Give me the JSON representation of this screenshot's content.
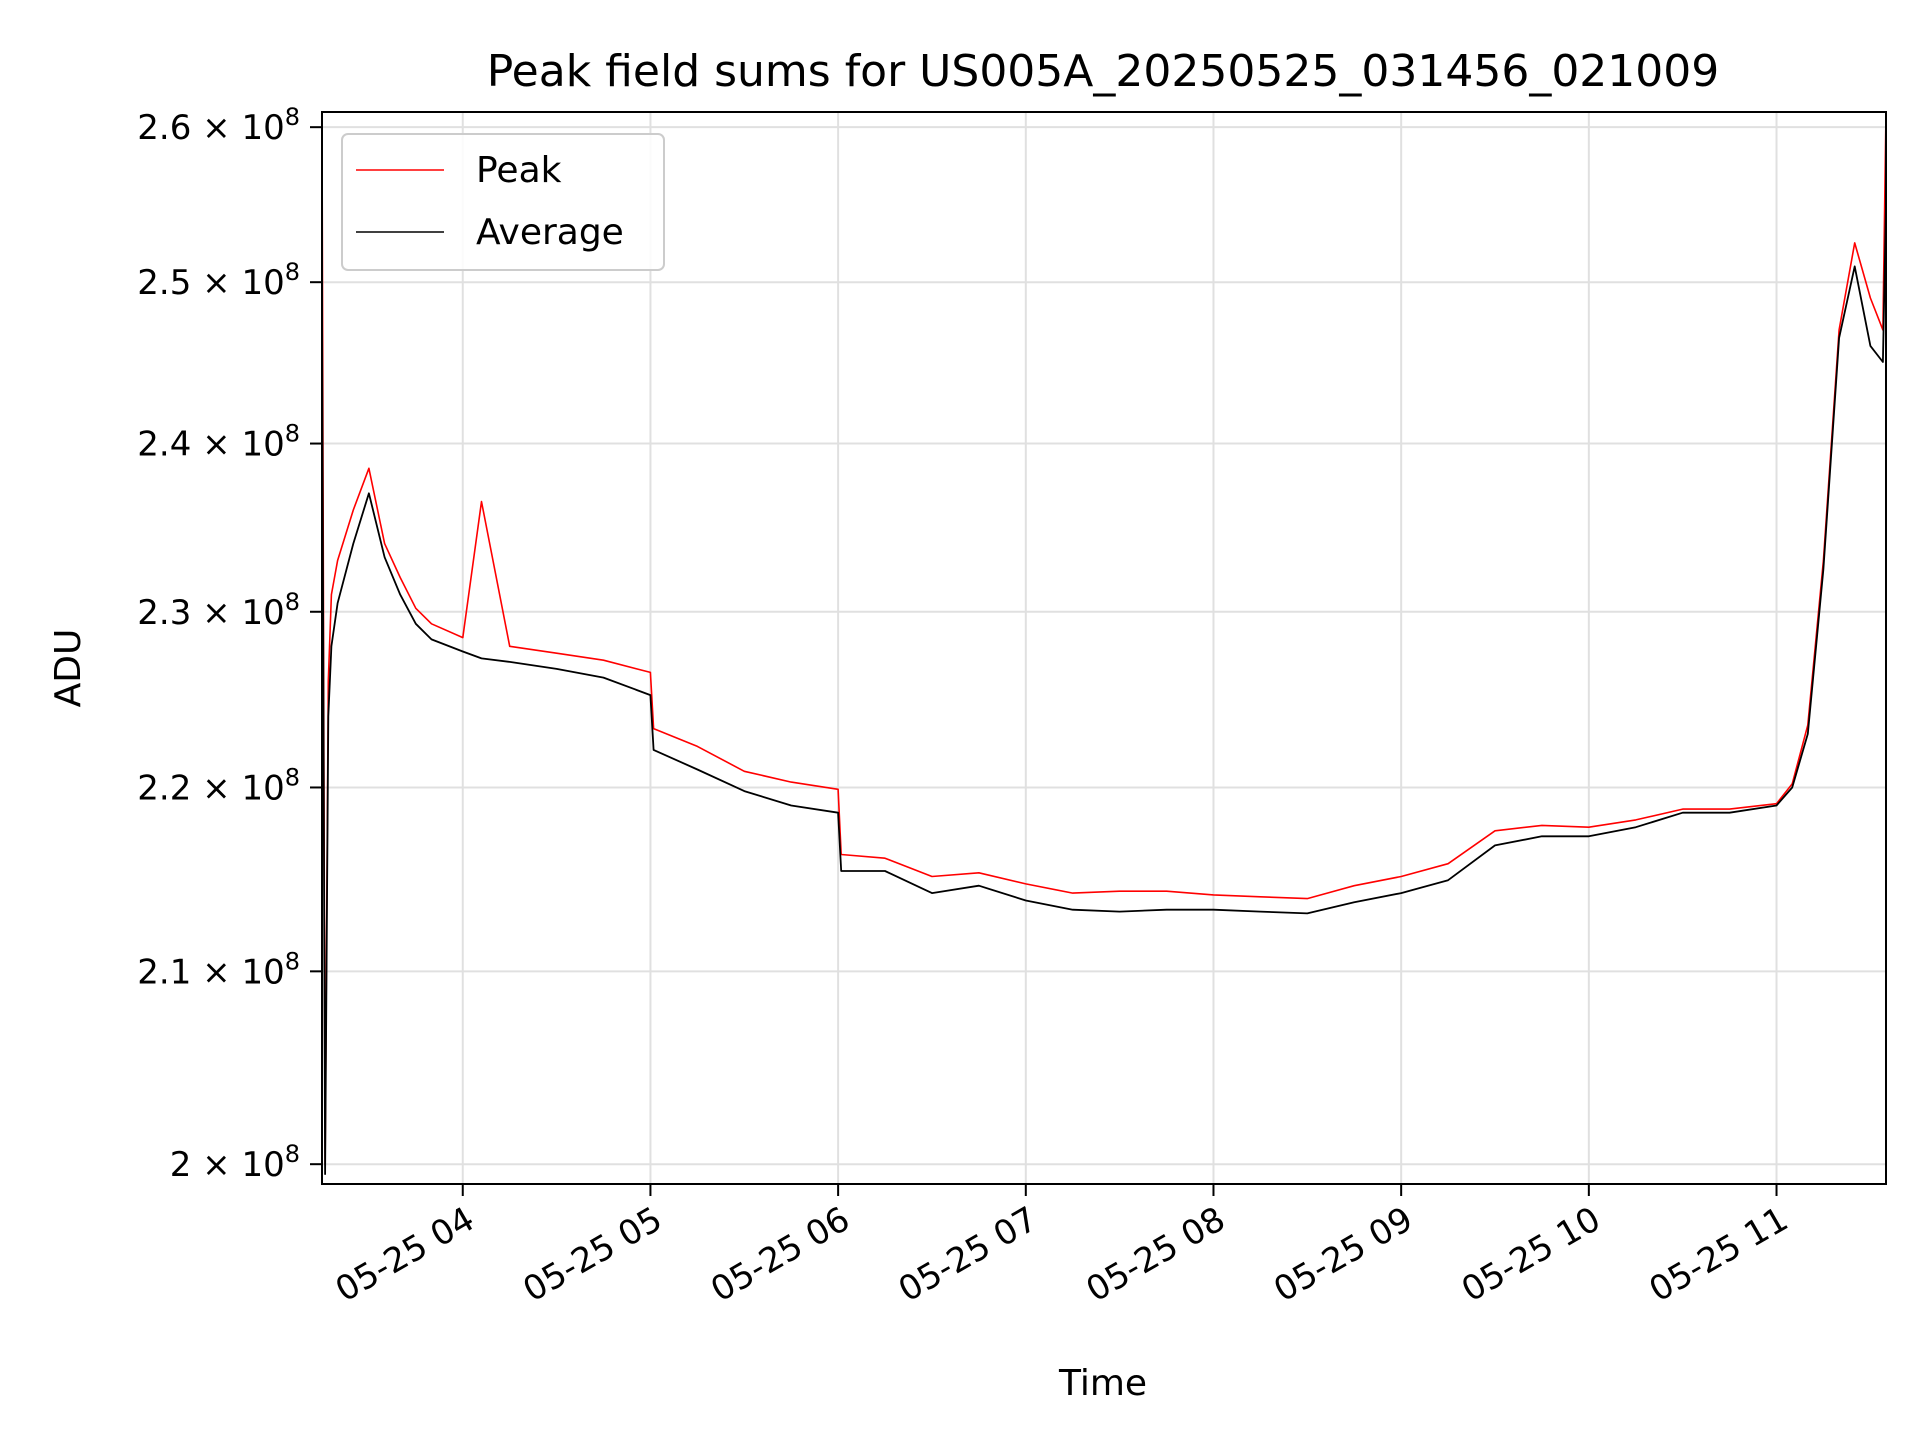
{
  "chart_data": {
    "type": "line",
    "title": "Peak field sums for US005A_20250525_031456_021009",
    "xlabel": "Time",
    "ylabel": "ADU",
    "yscale": "log",
    "xlim": [
      "2025-05-25 03:15",
      "2025-05-25 11:35"
    ],
    "ylim": [
      199000000,
      261000000
    ],
    "x_ticks": [
      "05-25 04",
      "05-25 05",
      "05-25 06",
      "05-25 07",
      "05-25 08",
      "05-25 09",
      "05-25 10",
      "05-25 11"
    ],
    "x_tick_values": [
      "2025-05-25 04:00",
      "2025-05-25 05:00",
      "2025-05-25 06:00",
      "2025-05-25 07:00",
      "2025-05-25 08:00",
      "2025-05-25 09:00",
      "2025-05-25 10:00",
      "2025-05-25 11:00"
    ],
    "y_ticks": [
      {
        "value": 200000000,
        "mantissa": "2",
        "exponent": "8"
      },
      {
        "value": 210000000,
        "mantissa": "2.1",
        "exponent": "8"
      },
      {
        "value": 220000000,
        "mantissa": "2.2",
        "exponent": "8"
      },
      {
        "value": 230000000,
        "mantissa": "2.3",
        "exponent": "8"
      },
      {
        "value": 240000000,
        "mantissa": "2.4",
        "exponent": "8"
      },
      {
        "value": 250000000,
        "mantissa": "2.5",
        "exponent": "8"
      },
      {
        "value": 260000000,
        "mantissa": "2.6",
        "exponent": "8"
      }
    ],
    "grid": true,
    "legend_position": "top-left",
    "series": [
      {
        "name": "Peak",
        "color": "#ff0000",
        "x": [
          "2025-05-25 03:15",
          "2025-05-25 03:16",
          "2025-05-25 03:17",
          "2025-05-25 03:18",
          "2025-05-25 03:20",
          "2025-05-25 03:25",
          "2025-05-25 03:30",
          "2025-05-25 03:35",
          "2025-05-25 03:40",
          "2025-05-25 03:45",
          "2025-05-25 03:50",
          "2025-05-25 04:00",
          "2025-05-25 04:06",
          "2025-05-25 04:15",
          "2025-05-25 04:30",
          "2025-05-25 04:45",
          "2025-05-25 05:00",
          "2025-05-25 05:01",
          "2025-05-25 05:15",
          "2025-05-25 05:30",
          "2025-05-25 05:45",
          "2025-05-25 06:00",
          "2025-05-25 06:01",
          "2025-05-25 06:15",
          "2025-05-25 06:30",
          "2025-05-25 06:45",
          "2025-05-25 07:00",
          "2025-05-25 07:15",
          "2025-05-25 07:30",
          "2025-05-25 07:45",
          "2025-05-25 08:00",
          "2025-05-25 08:15",
          "2025-05-25 08:30",
          "2025-05-25 08:45",
          "2025-05-25 09:00",
          "2025-05-25 09:15",
          "2025-05-25 09:30",
          "2025-05-25 09:45",
          "2025-05-25 10:00",
          "2025-05-25 10:15",
          "2025-05-25 10:30",
          "2025-05-25 10:45",
          "2025-05-25 11:00",
          "2025-05-25 11:05",
          "2025-05-25 11:10",
          "2025-05-25 11:15",
          "2025-05-25 11:20",
          "2025-05-25 11:25",
          "2025-05-25 11:30",
          "2025-05-25 11:34",
          "2025-05-25 11:35"
        ],
        "values": [
          260000000,
          200000000,
          226000000,
          231000000,
          233000000,
          236000000,
          238500000,
          234000000,
          232000000,
          230200000,
          229300000,
          228500000,
          236500000,
          228000000,
          227600000,
          227200000,
          226500000,
          223300000,
          222300000,
          220900000,
          220300000,
          219900000,
          216300000,
          216100000,
          215100000,
          215300000,
          214700000,
          214200000,
          214300000,
          214300000,
          214100000,
          214000000,
          213900000,
          214600000,
          215100000,
          215800000,
          217600000,
          217900000,
          217800000,
          218200000,
          218800000,
          218800000,
          219100000,
          220200000,
          223500000,
          233000000,
          247000000,
          252500000,
          249000000,
          247000000,
          261000000
        ]
      },
      {
        "name": "Average",
        "color": "#000000",
        "x": [
          "2025-05-25 03:15",
          "2025-05-25 03:16",
          "2025-05-25 03:17",
          "2025-05-25 03:18",
          "2025-05-25 03:20",
          "2025-05-25 03:25",
          "2025-05-25 03:30",
          "2025-05-25 03:35",
          "2025-05-25 03:40",
          "2025-05-25 03:45",
          "2025-05-25 03:50",
          "2025-05-25 04:00",
          "2025-05-25 04:06",
          "2025-05-25 04:15",
          "2025-05-25 04:30",
          "2025-05-25 04:45",
          "2025-05-25 05:00",
          "2025-05-25 05:01",
          "2025-05-25 05:15",
          "2025-05-25 05:30",
          "2025-05-25 05:45",
          "2025-05-25 06:00",
          "2025-05-25 06:01",
          "2025-05-25 06:15",
          "2025-05-25 06:30",
          "2025-05-25 06:45",
          "2025-05-25 07:00",
          "2025-05-25 07:15",
          "2025-05-25 07:30",
          "2025-05-25 07:45",
          "2025-05-25 08:00",
          "2025-05-25 08:15",
          "2025-05-25 08:30",
          "2025-05-25 08:45",
          "2025-05-25 09:00",
          "2025-05-25 09:15",
          "2025-05-25 09:30",
          "2025-05-25 09:45",
          "2025-05-25 10:00",
          "2025-05-25 10:15",
          "2025-05-25 10:30",
          "2025-05-25 10:45",
          "2025-05-25 11:00",
          "2025-05-25 11:05",
          "2025-05-25 11:10",
          "2025-05-25 11:15",
          "2025-05-25 11:20",
          "2025-05-25 11:25",
          "2025-05-25 11:30",
          "2025-05-25 11:34",
          "2025-05-25 11:35"
        ],
        "values": [
          249000000,
          199500000,
          224000000,
          228000000,
          230500000,
          234000000,
          237000000,
          233200000,
          231000000,
          229300000,
          228400000,
          227700000,
          227300000,
          227100000,
          226700000,
          226200000,
          225200000,
          222100000,
          221000000,
          219800000,
          219000000,
          218600000,
          215400000,
          215400000,
          214200000,
          214600000,
          213800000,
          213300000,
          213200000,
          213300000,
          213300000,
          213200000,
          213100000,
          213700000,
          214200000,
          214900000,
          216800000,
          217300000,
          217300000,
          217800000,
          218600000,
          218600000,
          219000000,
          220000000,
          223000000,
          232500000,
          246500000,
          251000000,
          246000000,
          245000000,
          255000000
        ]
      }
    ]
  }
}
